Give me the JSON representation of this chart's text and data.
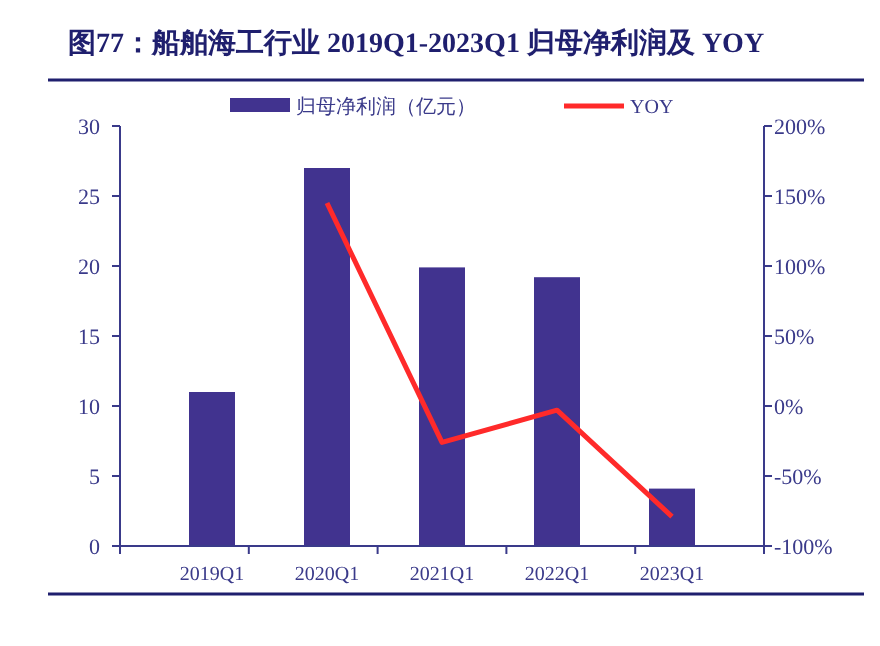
{
  "chart_data": {
    "type": "bar",
    "title": "图77：船舶海工行业 2019Q1-2023Q1 归母净利润及 YOY",
    "categories": [
      "2019Q1",
      "2020Q1",
      "2021Q1",
      "2022Q1",
      "2023Q1"
    ],
    "series": [
      {
        "name": "归母净利润（亿元）",
        "color": "#41338f",
        "values": [
          11,
          27,
          19.9,
          19.2,
          4.1
        ]
      },
      {
        "name": "YOY",
        "type": "line",
        "axis": "y2",
        "color": "#ff2a2a",
        "values": [
          null,
          145,
          -26,
          -3,
          -79
        ]
      }
    ],
    "ylim": [
      0,
      30
    ],
    "yticks": [
      0,
      5,
      10,
      15,
      20,
      25,
      30
    ],
    "y2lim": [
      -100,
      200
    ],
    "y2ticks": [
      {
        "value": -100,
        "label": "-100%"
      },
      {
        "value": -50,
        "label": "-50%"
      },
      {
        "value": 0,
        "label": "0%"
      },
      {
        "value": 50,
        "label": "50%"
      },
      {
        "value": 100,
        "label": "100%"
      },
      {
        "value": 150,
        "label": "150%"
      },
      {
        "value": 200,
        "label": "200%"
      }
    ],
    "legend": "top",
    "grid": false
  }
}
